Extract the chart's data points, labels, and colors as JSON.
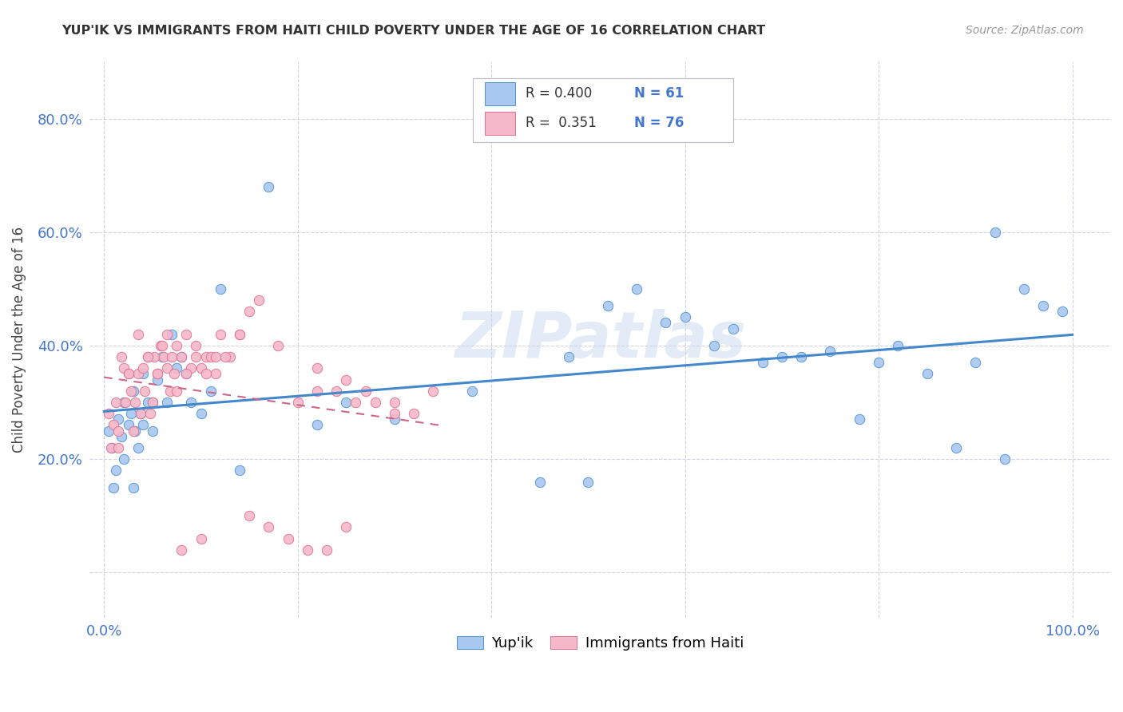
{
  "title": "YUP'IK VS IMMIGRANTS FROM HAITI CHILD POVERTY UNDER THE AGE OF 16 CORRELATION CHART",
  "source": "Source: ZipAtlas.com",
  "ylabel": "Child Poverty Under the Age of 16",
  "blue_color": "#A8C8F0",
  "pink_color": "#F5B8C8",
  "blue_edge_color": "#5090D0",
  "pink_edge_color": "#E07090",
  "blue_line_color": "#4488CC",
  "pink_line_color": "#CC6688",
  "watermark": "ZIPatlas",
  "watermark_color": "#C8D8EE",
  "legend_r_blue": "R = 0.400",
  "legend_n_blue": "N = 61",
  "legend_r_pink": "R =  0.351",
  "legend_n_pink": "N = 76",
  "tick_color": "#4477CC",
  "blue_x": [
    0.005,
    0.008,
    0.01,
    0.012,
    0.015,
    0.018,
    0.02,
    0.02,
    0.025,
    0.028,
    0.03,
    0.03,
    0.032,
    0.035,
    0.038,
    0.04,
    0.04,
    0.045,
    0.05,
    0.05,
    0.055,
    0.06,
    0.065,
    0.07,
    0.075,
    0.08,
    0.085,
    0.09,
    0.1,
    0.11,
    0.12,
    0.14,
    0.17,
    0.22,
    0.25,
    0.3,
    0.38,
    0.45,
    0.48,
    0.52,
    0.55,
    0.58,
    0.6,
    0.63,
    0.65,
    0.68,
    0.7,
    0.72,
    0.75,
    0.78,
    0.8,
    0.82,
    0.85,
    0.88,
    0.9,
    0.92,
    0.93,
    0.95,
    0.97,
    0.99,
    0.5
  ],
  "blue_y": [
    0.25,
    0.22,
    0.15,
    0.18,
    0.27,
    0.24,
    0.3,
    0.2,
    0.26,
    0.28,
    0.32,
    0.15,
    0.25,
    0.22,
    0.28,
    0.35,
    0.26,
    0.3,
    0.25,
    0.3,
    0.34,
    0.38,
    0.3,
    0.42,
    0.36,
    0.38,
    0.35,
    0.3,
    0.28,
    0.32,
    0.5,
    0.18,
    0.68,
    0.26,
    0.3,
    0.27,
    0.32,
    0.16,
    0.38,
    0.47,
    0.5,
    0.44,
    0.45,
    0.4,
    0.43,
    0.37,
    0.38,
    0.38,
    0.39,
    0.27,
    0.37,
    0.4,
    0.35,
    0.22,
    0.37,
    0.6,
    0.2,
    0.5,
    0.47,
    0.46,
    0.16
  ],
  "pink_x": [
    0.005,
    0.007,
    0.01,
    0.012,
    0.015,
    0.018,
    0.02,
    0.022,
    0.025,
    0.028,
    0.03,
    0.032,
    0.035,
    0.038,
    0.04,
    0.042,
    0.045,
    0.048,
    0.05,
    0.052,
    0.055,
    0.058,
    0.06,
    0.062,
    0.065,
    0.068,
    0.07,
    0.072,
    0.075,
    0.08,
    0.085,
    0.09,
    0.095,
    0.1,
    0.105,
    0.11,
    0.115,
    0.12,
    0.13,
    0.14,
    0.015,
    0.025,
    0.035,
    0.045,
    0.055,
    0.065,
    0.075,
    0.085,
    0.095,
    0.105,
    0.115,
    0.125,
    0.14,
    0.15,
    0.16,
    0.18,
    0.2,
    0.22,
    0.24,
    0.26,
    0.28,
    0.3,
    0.32,
    0.34,
    0.22,
    0.25,
    0.27,
    0.3,
    0.08,
    0.1,
    0.15,
    0.17,
    0.19,
    0.21,
    0.23,
    0.25
  ],
  "pink_y": [
    0.28,
    0.22,
    0.26,
    0.3,
    0.25,
    0.38,
    0.36,
    0.3,
    0.35,
    0.32,
    0.25,
    0.3,
    0.35,
    0.28,
    0.36,
    0.32,
    0.38,
    0.28,
    0.3,
    0.38,
    0.35,
    0.4,
    0.4,
    0.38,
    0.36,
    0.32,
    0.38,
    0.35,
    0.4,
    0.38,
    0.42,
    0.36,
    0.4,
    0.36,
    0.38,
    0.38,
    0.35,
    0.42,
    0.38,
    0.42,
    0.22,
    0.35,
    0.42,
    0.38,
    0.35,
    0.42,
    0.32,
    0.35,
    0.38,
    0.35,
    0.38,
    0.38,
    0.42,
    0.46,
    0.48,
    0.4,
    0.3,
    0.32,
    0.32,
    0.3,
    0.3,
    0.28,
    0.28,
    0.32,
    0.36,
    0.34,
    0.32,
    0.3,
    0.04,
    0.06,
    0.1,
    0.08,
    0.06,
    0.04,
    0.04,
    0.08
  ]
}
